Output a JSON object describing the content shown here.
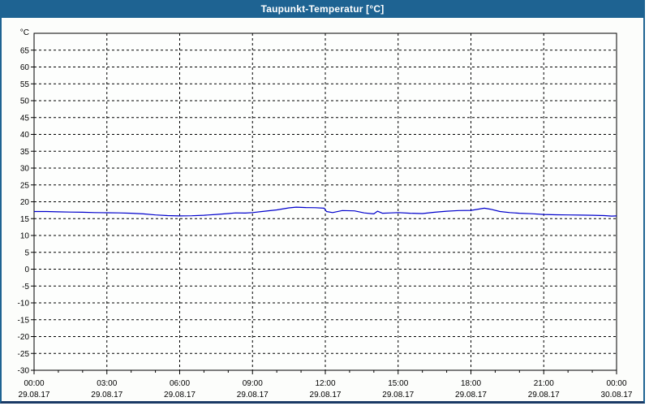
{
  "window": {
    "title": "Taupunkt-Temperatur [°C]"
  },
  "colors": {
    "titlebar_bg": "#1e6392",
    "titlebar_text": "#ffffff",
    "frame": "#1e6392",
    "frame_bottom": "#1a3a66",
    "content_bg": "#fcfdfb",
    "plot_bg": "#fdfefd",
    "plot_border": "#000000",
    "grid": "#000000",
    "tick_text": "#000000",
    "series_line": "#0000cc"
  },
  "chart_data": {
    "type": "line",
    "title": "Taupunkt-Temperatur [°C]",
    "ylabel": "°C",
    "xlabel": "",
    "grid": true,
    "legend": "none",
    "ylim": [
      -30,
      70
    ],
    "y_ticks": [
      65,
      60,
      55,
      50,
      45,
      40,
      35,
      30,
      25,
      20,
      15,
      10,
      5,
      0,
      -5,
      -10,
      -15,
      -20,
      -25,
      -30
    ],
    "xlim_hours": [
      0,
      24
    ],
    "minor_tick_hours": 1,
    "x_ticks": [
      {
        "hour": 0,
        "time": "00:00",
        "date": "29.08.17"
      },
      {
        "hour": 3,
        "time": "03:00",
        "date": "29.08.17"
      },
      {
        "hour": 6,
        "time": "06:00",
        "date": "29.08.17"
      },
      {
        "hour": 9,
        "time": "09:00",
        "date": "29.08.17"
      },
      {
        "hour": 12,
        "time": "12:00",
        "date": "29.08.17"
      },
      {
        "hour": 15,
        "time": "15:00",
        "date": "29.08.17"
      },
      {
        "hour": 18,
        "time": "18:00",
        "date": "29.08.17"
      },
      {
        "hour": 21,
        "time": "21:00",
        "date": "29.08.17"
      },
      {
        "hour": 24,
        "time": "00:00",
        "date": "30.08.17"
      }
    ],
    "series": [
      {
        "name": "Taupunkt-Temperatur",
        "color": "#0000cc",
        "points": [
          [
            0,
            17.1
          ],
          [
            0.5,
            17.1
          ],
          [
            1,
            17.0
          ],
          [
            1.5,
            16.95
          ],
          [
            2,
            16.9
          ],
          [
            2.5,
            16.8
          ],
          [
            3,
            16.75
          ],
          [
            3.5,
            16.7
          ],
          [
            4,
            16.6
          ],
          [
            4.5,
            16.4
          ],
          [
            5,
            16.1
          ],
          [
            5.5,
            15.9
          ],
          [
            6,
            15.8
          ],
          [
            6.5,
            15.85
          ],
          [
            7,
            16.0
          ],
          [
            7.5,
            16.25
          ],
          [
            8,
            16.5
          ],
          [
            8.3,
            16.7
          ],
          [
            8.7,
            16.65
          ],
          [
            9,
            16.8
          ],
          [
            9.5,
            17.2
          ],
          [
            10,
            17.6
          ],
          [
            10.5,
            18.2
          ],
          [
            10.8,
            18.4
          ],
          [
            11.2,
            18.3
          ],
          [
            11.6,
            18.25
          ],
          [
            11.95,
            18.1
          ],
          [
            12.05,
            17.1
          ],
          [
            12.3,
            16.8
          ],
          [
            12.7,
            17.4
          ],
          [
            13.2,
            17.3
          ],
          [
            13.6,
            16.7
          ],
          [
            14,
            16.4
          ],
          [
            14.15,
            17.2
          ],
          [
            14.35,
            16.6
          ],
          [
            14.7,
            16.7
          ],
          [
            15,
            16.8
          ],
          [
            15.5,
            16.6
          ],
          [
            16,
            16.5
          ],
          [
            16.5,
            16.9
          ],
          [
            17,
            17.2
          ],
          [
            17.5,
            17.4
          ],
          [
            18,
            17.45
          ],
          [
            18.3,
            17.8
          ],
          [
            18.55,
            18.1
          ],
          [
            18.8,
            17.8
          ],
          [
            19.2,
            17.1
          ],
          [
            19.6,
            16.8
          ],
          [
            20,
            16.6
          ],
          [
            20.5,
            16.45
          ],
          [
            21,
            16.25
          ],
          [
            21.5,
            16.15
          ],
          [
            22,
            16.1
          ],
          [
            22.5,
            16.05
          ],
          [
            23,
            16.0
          ],
          [
            23.5,
            15.9
          ],
          [
            23.8,
            15.75
          ],
          [
            24,
            15.8
          ]
        ]
      }
    ]
  }
}
